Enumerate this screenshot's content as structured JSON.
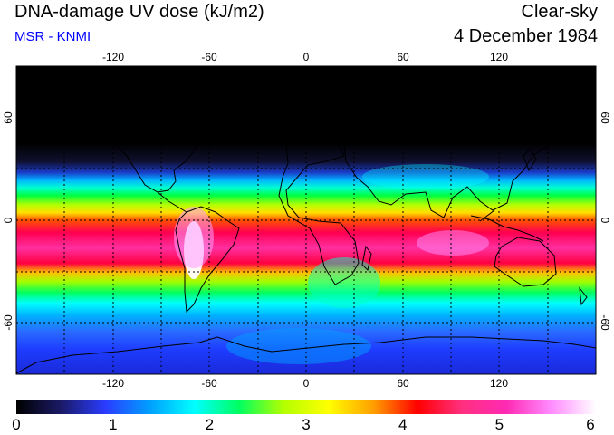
{
  "header": {
    "title": "DNA-damage UV dose (kJ/m2)",
    "subtitle": "MSR - KNMI",
    "condition": "Clear-sky",
    "date": "4 December 1984"
  },
  "colors": {
    "subtitle": "#0000ff",
    "coast": "#000000",
    "grid": "#000000"
  },
  "map": {
    "lon_ticks": [
      "-120",
      "-60",
      "0",
      "60",
      "120"
    ],
    "lat_ticks_left": [
      "60",
      "0",
      "-60"
    ],
    "lat_ticks_right": [
      "60",
      "0",
      "-60"
    ],
    "lon_range": [
      -180,
      180
    ],
    "lat_range": [
      -90,
      90
    ]
  },
  "colorbar": {
    "labels": [
      "0",
      "1",
      "2",
      "3",
      "4",
      "5",
      "6"
    ],
    "range": [
      0,
      6
    ],
    "stops": [
      "#000000",
      "#1a1a66",
      "#2a3cff",
      "#00a0ff",
      "#00ffff",
      "#00ff60",
      "#b4ff00",
      "#ffff00",
      "#ffa000",
      "#ff0000",
      "#ff3080",
      "#ff2ab4",
      "#ff8cff",
      "#ffffff"
    ]
  }
}
